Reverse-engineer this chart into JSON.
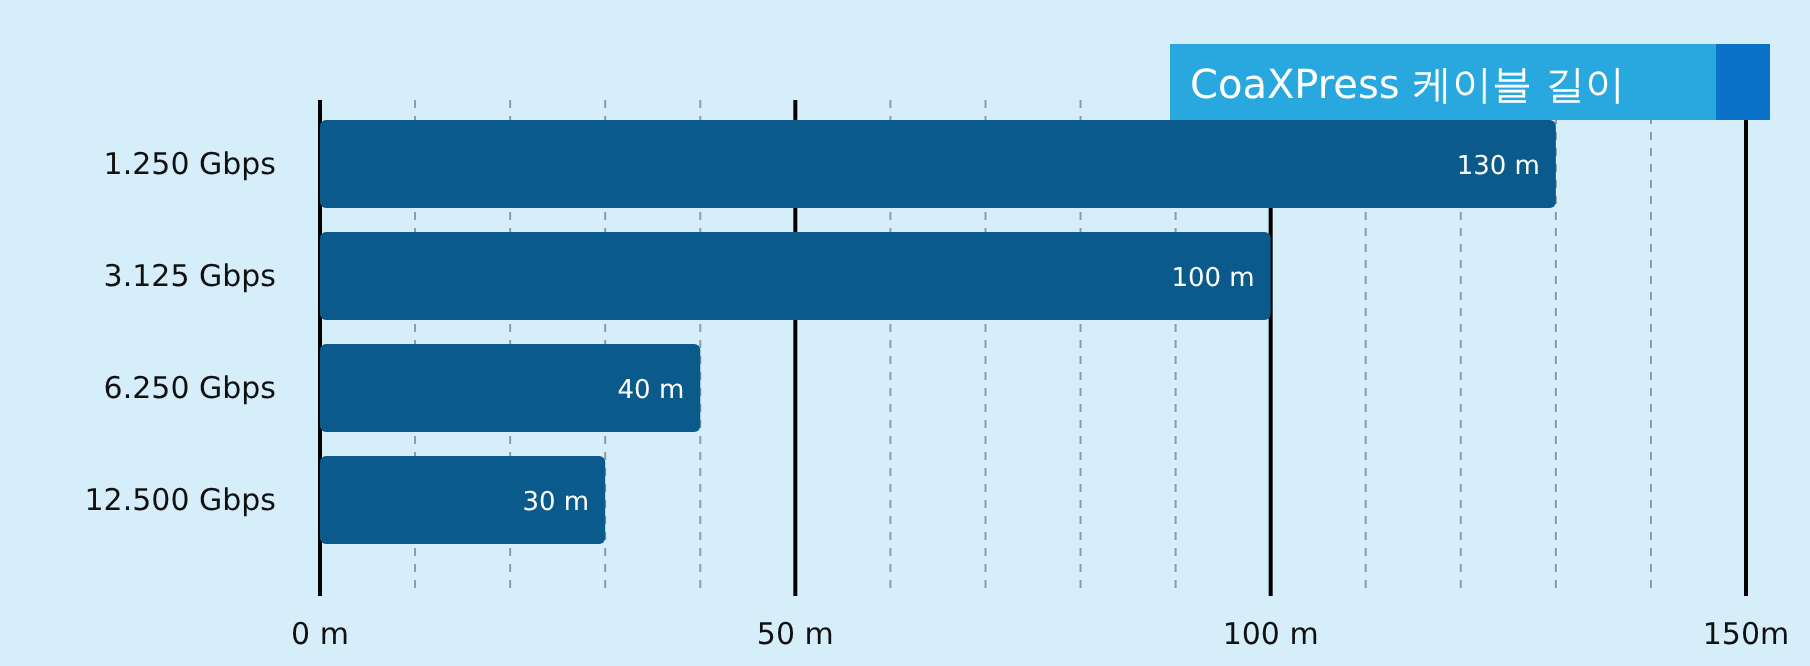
{
  "chart_data": {
    "type": "bar",
    "orientation": "horizontal",
    "title": "CoaXPress 케이블 길이",
    "categories": [
      "1.250 Gbps",
      "3.125 Gbps",
      "6.250 Gbps",
      "12.500 Gbps"
    ],
    "values": [
      130,
      100,
      40,
      30
    ],
    "value_labels": [
      "130 m",
      "100 m",
      "40 m",
      "30 m"
    ],
    "color": "#0b5a8c",
    "xlim": [
      0,
      150
    ],
    "xticks": [
      {
        "value": 0,
        "label": "0 m"
      },
      {
        "value": 10,
        "label": null
      },
      {
        "value": 20,
        "label": null
      },
      {
        "value": 30,
        "label": null
      },
      {
        "value": 40,
        "label": null
      },
      {
        "value": 50,
        "label": "50 m"
      },
      {
        "value": 60,
        "label": null
      },
      {
        "value": 70,
        "label": null
      },
      {
        "value": 80,
        "label": null
      },
      {
        "value": 90,
        "label": null
      },
      {
        "value": 100,
        "label": "100 m"
      },
      {
        "value": 110,
        "label": null
      },
      {
        "value": 120,
        "label": null
      },
      {
        "value": 130,
        "label": null
      },
      {
        "value": 140,
        "label": null
      },
      {
        "value": 150,
        "label": "150m"
      }
    ],
    "grid": "x"
  }
}
